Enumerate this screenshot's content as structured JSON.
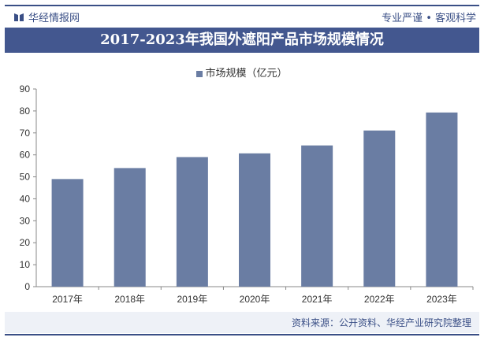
{
  "header": {
    "brand": "华经情报网",
    "slogan": "专业严谨 • 客观科学"
  },
  "footer": {
    "source": "资料来源：公开资料、华经产业研究院整理"
  },
  "colors": {
    "bar": "#6a7da3",
    "brand": "#3a4f86",
    "title_bg": "#43578f"
  },
  "chart_data": {
    "type": "bar",
    "title": "2017-2023年我国外遮阳产品市场规模情况",
    "categories": [
      "2017年",
      "2018年",
      "2019年",
      "2020年",
      "2021年",
      "2022年",
      "2023年"
    ],
    "series": [
      {
        "name": "市场规模（亿元）",
        "values": [
          49,
          54,
          59,
          60.7,
          64.3,
          71.1,
          79.3
        ]
      }
    ],
    "ylim": [
      0,
      90
    ],
    "yticks": [
      0,
      10,
      20,
      30,
      40,
      50,
      60,
      70,
      80,
      90
    ],
    "legend": "top-center",
    "grid": false
  }
}
